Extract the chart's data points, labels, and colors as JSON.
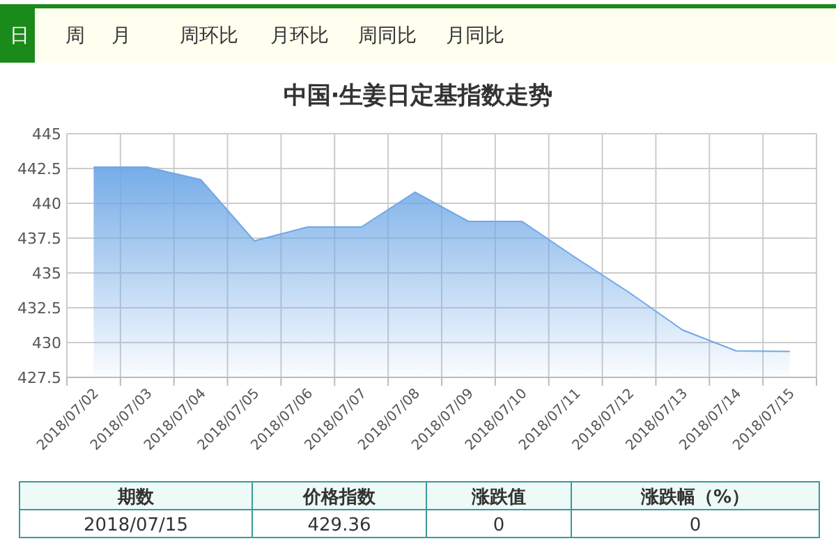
{
  "chart_data": {
    "type": "area",
    "title": "中国·生姜日定基指数走势",
    "categories": [
      "2018/07/02",
      "2018/07/03",
      "2018/07/04",
      "2018/07/05",
      "2018/07/06",
      "2018/07/07",
      "2018/07/08",
      "2018/07/09",
      "2018/07/10",
      "2018/07/11",
      "2018/07/12",
      "2018/07/13",
      "2018/07/14",
      "2018/07/15"
    ],
    "series": [
      {
        "color": "#6fa8e6",
        "values": [
          442.6,
          442.6,
          441.7,
          437.3,
          438.3,
          438.3,
          440.8,
          438.7,
          438.7,
          436.1,
          433.6,
          430.9,
          429.4,
          429.36
        ]
      }
    ],
    "ylim": [
      427.5,
      445
    ],
    "yticks": [
      427.5,
      430,
      432.5,
      435,
      437.5,
      440,
      442.5,
      445
    ],
    "grid": true,
    "marker": "none",
    "line_style": "solid",
    "annotations": [
      "日",
      "周",
      "月",
      "周环比",
      "月环比",
      "周同比",
      "月同比",
      "期数",
      "价格指数",
      "涨跌值",
      "涨跌幅（%）",
      "2018/07/15",
      "429.36",
      "0",
      "0"
    ]
  }
}
